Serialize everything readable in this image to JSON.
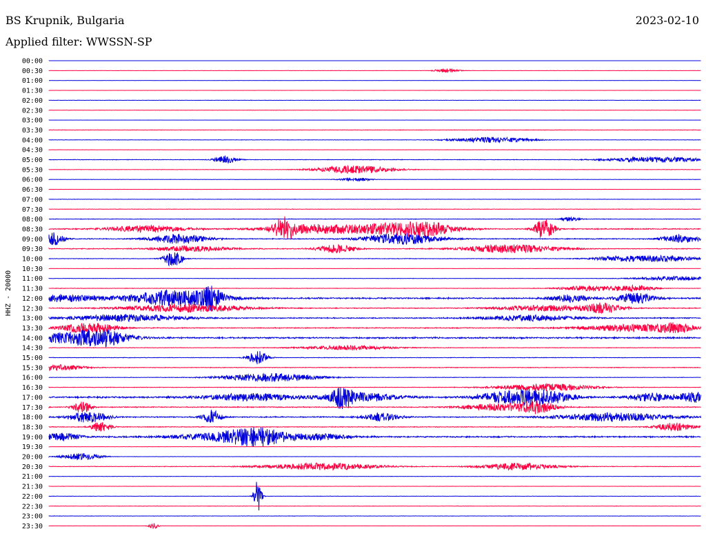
{
  "header": {
    "station": "BS Krupnik, Bulgaria",
    "date": "2023-02-10",
    "filter": "Applied filter: WWSSN-SP"
  },
  "chart_data": {
    "type": "line",
    "ylabel": "HHZ - 20000",
    "colors": {
      "blue": "#0000dd",
      "red": "#ff0040"
    },
    "series": [
      {
        "label": "00:00",
        "color": "blue",
        "level": 0.02,
        "bursts": []
      },
      {
        "label": "00:30",
        "color": "red",
        "level": 0.15,
        "bursts": [
          [
            0.61,
            3,
            0.012
          ]
        ]
      },
      {
        "label": "01:00",
        "color": "blue",
        "level": 0.08,
        "bursts": []
      },
      {
        "label": "01:30",
        "color": "red",
        "level": 0.05,
        "bursts": []
      },
      {
        "label": "02:00",
        "color": "blue",
        "level": 0.2,
        "bursts": []
      },
      {
        "label": "02:30",
        "color": "red",
        "level": 0.15,
        "bursts": []
      },
      {
        "label": "03:00",
        "color": "blue",
        "level": 0.05,
        "bursts": []
      },
      {
        "label": "03:30",
        "color": "red",
        "level": 0.25,
        "bursts": []
      },
      {
        "label": "04:00",
        "color": "blue",
        "level": 0.2,
        "bursts": [
          [
            0.68,
            4,
            0.04
          ]
        ]
      },
      {
        "label": "04:30",
        "color": "red",
        "level": 0.15,
        "bursts": []
      },
      {
        "label": "05:00",
        "color": "blue",
        "level": 0.3,
        "bursts": [
          [
            0.27,
            5,
            0.012
          ],
          [
            0.93,
            4,
            0.05
          ]
        ]
      },
      {
        "label": "05:30",
        "color": "red",
        "level": 0.2,
        "bursts": [
          [
            0.47,
            6,
            0.04
          ]
        ]
      },
      {
        "label": "06:00",
        "color": "blue",
        "level": 0.15,
        "bursts": [
          [
            0.47,
            3,
            0.015
          ]
        ]
      },
      {
        "label": "06:30",
        "color": "red",
        "level": 0.15,
        "bursts": []
      },
      {
        "label": "07:00",
        "color": "blue",
        "level": 0.2,
        "bursts": []
      },
      {
        "label": "07:30",
        "color": "red",
        "level": 0.25,
        "bursts": []
      },
      {
        "label": "08:00",
        "color": "blue",
        "level": 0.3,
        "bursts": [
          [
            0.8,
            3,
            0.01
          ]
        ]
      },
      {
        "label": "08:30",
        "color": "red",
        "level": 0.6,
        "bursts": [
          [
            0.15,
            5,
            0.04
          ],
          [
            0.36,
            15,
            0.01
          ],
          [
            0.4,
            6,
            0.05
          ],
          [
            0.52,
            7,
            0.05
          ],
          [
            0.58,
            8,
            0.03
          ],
          [
            0.76,
            15,
            0.01
          ]
        ]
      },
      {
        "label": "09:00",
        "color": "blue",
        "level": 0.5,
        "bursts": [
          [
            0.01,
            10,
            0.01
          ],
          [
            0.2,
            7,
            0.03
          ],
          [
            0.54,
            8,
            0.04
          ],
          [
            0.97,
            6,
            0.02
          ]
        ]
      },
      {
        "label": "09:30",
        "color": "red",
        "level": 0.45,
        "bursts": [
          [
            0.22,
            4,
            0.04
          ],
          [
            0.44,
            6,
            0.02
          ],
          [
            0.71,
            6,
            0.05
          ]
        ]
      },
      {
        "label": "10:00",
        "color": "blue",
        "level": 0.3,
        "bursts": [
          [
            0.19,
            12,
            0.01
          ],
          [
            0.88,
            4,
            0.03
          ],
          [
            0.95,
            4,
            0.03
          ]
        ]
      },
      {
        "label": "10:30",
        "color": "red",
        "level": 0.15,
        "bursts": []
      },
      {
        "label": "11:00",
        "color": "blue",
        "level": 0.2,
        "bursts": [
          [
            0.96,
            3,
            0.04
          ]
        ]
      },
      {
        "label": "11:30",
        "color": "red",
        "level": 0.25,
        "bursts": [
          [
            0.83,
            4,
            0.03
          ],
          [
            0.9,
            4,
            0.02
          ]
        ]
      },
      {
        "label": "12:00",
        "color": "blue",
        "level": 0.9,
        "bursts": [
          [
            0.01,
            5,
            0.05
          ],
          [
            0.17,
            7,
            0.04
          ],
          [
            0.22,
            7,
            0.04
          ],
          [
            0.25,
            12,
            0.01
          ],
          [
            0.8,
            5,
            0.02
          ],
          [
            0.9,
            7,
            0.02
          ]
        ]
      },
      {
        "label": "12:30",
        "color": "red",
        "level": 0.5,
        "bursts": [
          [
            0.21,
            6,
            0.06
          ],
          [
            0.76,
            4,
            0.05
          ],
          [
            0.85,
            7,
            0.02
          ]
        ]
      },
      {
        "label": "13:00",
        "color": "blue",
        "level": 0.6,
        "bursts": [
          [
            0.12,
            5,
            0.06
          ],
          [
            0.74,
            4,
            0.05
          ]
        ]
      },
      {
        "label": "13:30",
        "color": "red",
        "level": 0.5,
        "bursts": [
          [
            0.04,
            5,
            0.02
          ],
          [
            0.08,
            6,
            0.02
          ],
          [
            0.89,
            5,
            0.05
          ],
          [
            0.96,
            6,
            0.02
          ]
        ]
      },
      {
        "label": "14:00",
        "color": "blue",
        "level": 0.9,
        "bursts": [
          [
            0.02,
            6,
            0.05
          ],
          [
            0.08,
            10,
            0.03
          ]
        ]
      },
      {
        "label": "14:30",
        "color": "red",
        "level": 0.3,
        "bursts": [
          [
            0.46,
            3,
            0.05
          ]
        ]
      },
      {
        "label": "15:00",
        "color": "blue",
        "level": 0.3,
        "bursts": [
          [
            0.32,
            10,
            0.01
          ]
        ]
      },
      {
        "label": "15:30",
        "color": "red",
        "level": 0.35,
        "bursts": [
          [
            0.01,
            4,
            0.03
          ]
        ]
      },
      {
        "label": "16:00",
        "color": "blue",
        "level": 0.25,
        "bursts": [
          [
            0.34,
            6,
            0.05
          ]
        ]
      },
      {
        "label": "16:30",
        "color": "red",
        "level": 0.3,
        "bursts": [
          [
            0.76,
            5,
            0.05
          ]
        ]
      },
      {
        "label": "17:00",
        "color": "blue",
        "level": 0.9,
        "bursts": [
          [
            0.31,
            5,
            0.05
          ],
          [
            0.45,
            14,
            0.01
          ],
          [
            0.48,
            6,
            0.04
          ],
          [
            0.7,
            8,
            0.03
          ],
          [
            0.76,
            10,
            0.03
          ],
          [
            0.92,
            6,
            0.02
          ],
          [
            0.99,
            7,
            0.02
          ]
        ]
      },
      {
        "label": "17:30",
        "color": "red",
        "level": 0.5,
        "bursts": [
          [
            0.05,
            8,
            0.01
          ],
          [
            0.69,
            5,
            0.04
          ],
          [
            0.75,
            8,
            0.02
          ]
        ]
      },
      {
        "label": "18:00",
        "color": "blue",
        "level": 0.6,
        "bursts": [
          [
            0.06,
            8,
            0.02
          ],
          [
            0.25,
            10,
            0.01
          ],
          [
            0.51,
            6,
            0.02
          ],
          [
            0.87,
            6,
            0.06
          ]
        ]
      },
      {
        "label": "18:30",
        "color": "red",
        "level": 0.4,
        "bursts": [
          [
            0.08,
            8,
            0.01
          ],
          [
            0.96,
            6,
            0.02
          ]
        ]
      },
      {
        "label": "19:00",
        "color": "blue",
        "level": 0.8,
        "bursts": [
          [
            0.02,
            5,
            0.02
          ],
          [
            0.28,
            6,
            0.06
          ],
          [
            0.32,
            10,
            0.03
          ],
          [
            0.42,
            4,
            0.03
          ]
        ]
      },
      {
        "label": "19:30",
        "color": "red",
        "level": 0.15,
        "bursts": []
      },
      {
        "label": "20:00",
        "color": "blue",
        "level": 0.15,
        "bursts": [
          [
            0.05,
            5,
            0.02
          ]
        ]
      },
      {
        "label": "20:30",
        "color": "red",
        "level": 0.3,
        "bursts": [
          [
            0.42,
            5,
            0.06
          ],
          [
            0.72,
            5,
            0.04
          ]
        ]
      },
      {
        "label": "21:00",
        "color": "blue",
        "level": 0.2,
        "bursts": []
      },
      {
        "label": "21:30",
        "color": "red",
        "level": 0.15,
        "bursts": []
      },
      {
        "label": "22:00",
        "color": "blue",
        "level": 0.2,
        "bursts": [
          [
            0.32,
            24,
            0.004
          ]
        ]
      },
      {
        "label": "22:30",
        "color": "red",
        "level": 0.2,
        "bursts": []
      },
      {
        "label": "23:00",
        "color": "blue",
        "level": 0.2,
        "bursts": []
      },
      {
        "label": "23:30",
        "color": "red",
        "level": 0.1,
        "bursts": [
          [
            0.16,
            4,
            0.005
          ]
        ]
      }
    ]
  }
}
